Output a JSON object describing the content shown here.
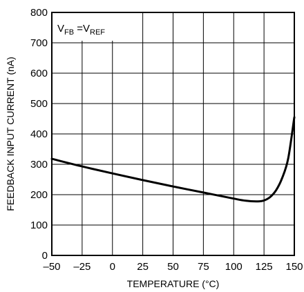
{
  "chart_data": {
    "type": "line",
    "title": "",
    "xlabel": "TEMPERATURE (°C)",
    "ylabel": "FEEDBACK INPUT CURRENT (nA)",
    "xlim": [
      -50,
      150
    ],
    "ylim": [
      0,
      800
    ],
    "grid": true,
    "x_ticks": [
      "–50",
      "–25",
      "0",
      "25",
      "50",
      "75",
      "100",
      "125",
      "150"
    ],
    "y_ticks": [
      "0",
      "100",
      "200",
      "300",
      "400",
      "500",
      "600",
      "700",
      "800"
    ],
    "annotation": {
      "v1": "V",
      "v1_sub": "FB",
      "eq": " =V",
      "v2_sub": "REF"
    },
    "series": [
      {
        "x": [
          -50,
          -25,
          0,
          25,
          50,
          75,
          100,
          110,
          120,
          125,
          130,
          135,
          140,
          145,
          150
        ],
        "y": [
          318,
          293,
          270,
          248,
          227,
          207,
          187,
          180,
          178,
          181,
          192,
          215,
          255,
          320,
          455
        ]
      }
    ]
  }
}
